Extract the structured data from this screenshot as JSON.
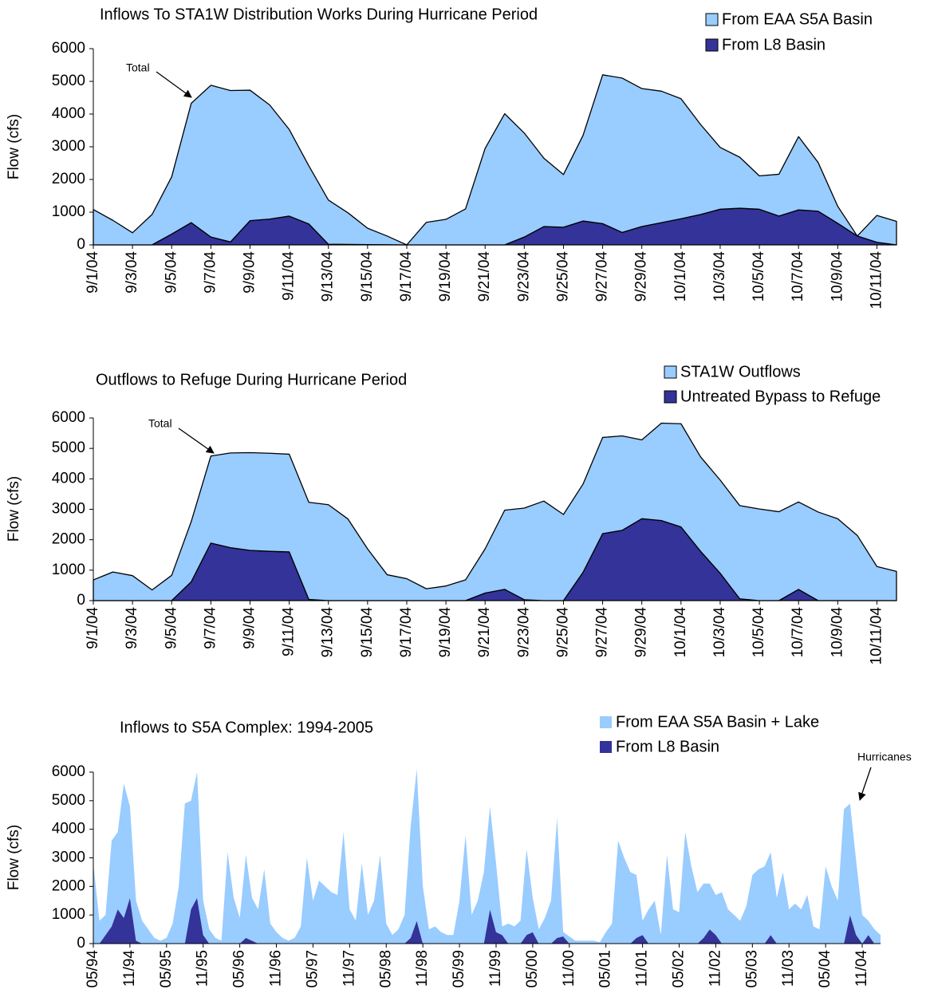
{
  "chart_data": [
    {
      "type": "area",
      "stacked": true,
      "outline": true,
      "title": "Inflows To STA1W Distribution Works During Hurricane Period",
      "y_label": "Flow (cfs)",
      "annotation": "Total",
      "ylim": [
        0,
        6000
      ],
      "yticks": [
        0,
        1000,
        2000,
        3000,
        4000,
        5000,
        6000
      ],
      "categories": [
        "9/1/04",
        null,
        "9/3/04",
        null,
        "9/5/04",
        null,
        "9/7/04",
        null,
        "9/9/04",
        null,
        "9/11/04",
        null,
        "9/13/04",
        null,
        "9/15/04",
        null,
        "9/17/04",
        null,
        "9/19/04",
        null,
        "9/21/04",
        null,
        "9/23/04",
        null,
        "9/25/04",
        null,
        "9/27/04",
        null,
        "9/29/04",
        null,
        "10/1/04",
        null,
        "10/3/04",
        null,
        "10/5/04",
        null,
        "10/7/04",
        null,
        "10/9/04",
        null,
        "10/11/04",
        null
      ],
      "series": [
        {
          "name": "From EAA S5A Basin",
          "color": "#99ccff",
          "values": [
            1080,
            750,
            370,
            930,
            1750,
            3650,
            4640,
            4630,
            3990,
            3490,
            2650,
            1780,
            1350,
            965,
            500,
            265,
            0,
            690,
            780,
            1100,
            2950,
            4010,
            3180,
            2090,
            1610,
            2620,
            4550,
            4720,
            4220,
            4020,
            3670,
            2750,
            1890,
            1560,
            1020,
            1280,
            2240,
            1490,
            520,
            0,
            820,
            720
          ]
        },
        {
          "name": "From L8 Basin",
          "color": "#333399",
          "values": [
            0,
            0,
            0,
            0,
            330,
            680,
            240,
            90,
            740,
            790,
            880,
            640,
            20,
            15,
            10,
            5,
            0,
            0,
            0,
            0,
            0,
            0,
            240,
            560,
            540,
            730,
            650,
            380,
            560,
            680,
            800,
            930,
            1090,
            1120,
            1090,
            880,
            1070,
            1030,
            660,
            270,
            80,
            0
          ]
        }
      ]
    },
    {
      "type": "area",
      "stacked": true,
      "outline": true,
      "title": "Outflows to Refuge During Hurricane Period",
      "y_label": "Flow (cfs)",
      "annotation": "Total",
      "ylim": [
        0,
        6000
      ],
      "yticks": [
        0,
        1000,
        2000,
        3000,
        4000,
        5000,
        6000
      ],
      "categories": [
        "9/1/04",
        null,
        "9/3/04",
        null,
        "9/5/04",
        null,
        "9/7/04",
        null,
        "9/9/04",
        null,
        "9/11/04",
        null,
        "9/13/04",
        null,
        "9/15/04",
        null,
        "9/17/04",
        null,
        "9/19/04",
        null,
        "9/21/04",
        null,
        "9/23/04",
        null,
        "9/25/04",
        null,
        "9/27/04",
        null,
        "9/29/04",
        null,
        "10/1/04",
        null,
        "10/3/04",
        null,
        "10/5/04",
        null,
        "10/7/04",
        null,
        "10/9/04",
        null,
        "10/11/04",
        null
      ],
      "series": [
        {
          "name": "STA1W Outflows",
          "color": "#99ccff",
          "values": [
            680,
            940,
            820,
            350,
            830,
            1980,
            2860,
            3110,
            3210,
            3220,
            3210,
            3190,
            3150,
            2680,
            1700,
            850,
            720,
            390,
            480,
            680,
            1450,
            2600,
            3010,
            3270,
            2830,
            2900,
            3160,
            3100,
            2590,
            3200,
            3390,
            3100,
            3060,
            3060,
            3010,
            2920,
            2870,
            2910,
            2690,
            2140,
            1120,
            960
          ]
        },
        {
          "name": "Untreated Bypass to Refuge",
          "color": "#333399",
          "values": [
            0,
            0,
            0,
            0,
            0,
            620,
            1890,
            1740,
            1650,
            1620,
            1600,
            40,
            0,
            0,
            0,
            0,
            0,
            0,
            0,
            0,
            250,
            370,
            30,
            0,
            0,
            930,
            2200,
            2310,
            2690,
            2630,
            2420,
            1620,
            900,
            60,
            0,
            0,
            370,
            0,
            0,
            0,
            0,
            0
          ]
        }
      ]
    },
    {
      "type": "area",
      "stacked": true,
      "outline": false,
      "title": "Inflows to S5A Complex: 1994-2005",
      "y_label": "Flow (cfs)",
      "annotation": "Hurricanes",
      "ylim": [
        0,
        6000
      ],
      "yticks": [
        0,
        1000,
        2000,
        3000,
        4000,
        5000,
        6000
      ],
      "categories": [
        "05/94",
        null,
        null,
        null,
        null,
        null,
        "11/94",
        null,
        null,
        null,
        null,
        null,
        "05/95",
        null,
        null,
        null,
        null,
        null,
        "11/95",
        null,
        null,
        null,
        null,
        null,
        "05/96",
        null,
        null,
        null,
        null,
        null,
        "11/96",
        null,
        null,
        null,
        null,
        null,
        "05/97",
        null,
        null,
        null,
        null,
        null,
        "11/97",
        null,
        null,
        null,
        null,
        null,
        "05/98",
        null,
        null,
        null,
        null,
        null,
        "11/98",
        null,
        null,
        null,
        null,
        null,
        "05/99",
        null,
        null,
        null,
        null,
        null,
        "11/99",
        null,
        null,
        null,
        null,
        null,
        "05/00",
        null,
        null,
        null,
        null,
        null,
        "11/00",
        null,
        null,
        null,
        null,
        null,
        "05/01",
        null,
        null,
        null,
        null,
        null,
        "11/01",
        null,
        null,
        null,
        null,
        null,
        "05/02",
        null,
        null,
        null,
        null,
        null,
        "11/02",
        null,
        null,
        null,
        null,
        null,
        "05/03",
        null,
        null,
        null,
        null,
        null,
        "11/03",
        null,
        null,
        null,
        null,
        null,
        "05/04",
        null,
        null,
        null,
        null,
        null,
        "11/04",
        null,
        null,
        null
      ],
      "series": [
        {
          "name": "From EAA S5A Basin + Lake",
          "color": "#99ccff",
          "values": [
            2800,
            800,
            700,
            3000,
            2700,
            4700,
            3200,
            1400,
            800,
            500,
            200,
            100,
            200,
            700,
            2000,
            4900,
            3800,
            4400,
            1200,
            500,
            200,
            100,
            3200,
            1600,
            900,
            2900,
            1500,
            1200,
            2600,
            700,
            400,
            200,
            100,
            200,
            600,
            3000,
            1500,
            2200,
            2000,
            1800,
            1700,
            3900,
            1200,
            800,
            2800,
            1000,
            1500,
            3100,
            700,
            300,
            500,
            1000,
            3900,
            5300,
            2000,
            500,
            600,
            400,
            300,
            300,
            1500,
            3800,
            1000,
            1500,
            2500,
            3600,
            2400,
            300,
            700,
            600,
            800,
            3000,
            1200,
            500,
            900,
            1500,
            4200,
            150,
            250,
            100,
            100,
            100,
            100,
            50,
            400,
            700,
            3600,
            3000,
            2500,
            2200,
            500,
            1200,
            1500,
            300,
            3100,
            1200,
            1100,
            3900,
            2700,
            1800,
            1900,
            1600,
            1400,
            1800,
            1200,
            1000,
            800,
            1300,
            2400,
            2600,
            2700,
            2900,
            1600,
            2500,
            1200,
            1400,
            1200,
            1700,
            600,
            500,
            2700,
            2000,
            1500,
            4700,
            3900,
            2600,
            1000,
            500,
            500,
            300
          ]
        },
        {
          "name": "From L8 Basin",
          "color": "#333399",
          "values": [
            0,
            0,
            300,
            600,
            1200,
            900,
            1600,
            100,
            0,
            0,
            0,
            0,
            0,
            0,
            0,
            0,
            1200,
            1600,
            300,
            0,
            0,
            0,
            0,
            0,
            0,
            200,
            100,
            0,
            0,
            0,
            0,
            0,
            0,
            0,
            0,
            0,
            0,
            0,
            0,
            0,
            0,
            0,
            0,
            0,
            0,
            0,
            0,
            0,
            0,
            0,
            0,
            0,
            200,
            800,
            0,
            0,
            0,
            0,
            0,
            0,
            0,
            0,
            0,
            0,
            0,
            1200,
            400,
            300,
            0,
            0,
            0,
            300,
            400,
            0,
            0,
            0,
            200,
            250,
            0,
            0,
            0,
            0,
            0,
            0,
            0,
            0,
            0,
            0,
            0,
            200,
            300,
            0,
            0,
            0,
            0,
            0,
            0,
            0,
            0,
            0,
            200,
            500,
            300,
            0,
            0,
            0,
            0,
            0,
            0,
            0,
            0,
            300,
            0,
            0,
            0,
            0,
            0,
            0,
            0,
            0,
            0,
            0,
            0,
            0,
            1000,
            300,
            0,
            300,
            0,
            0
          ]
        }
      ]
    }
  ]
}
